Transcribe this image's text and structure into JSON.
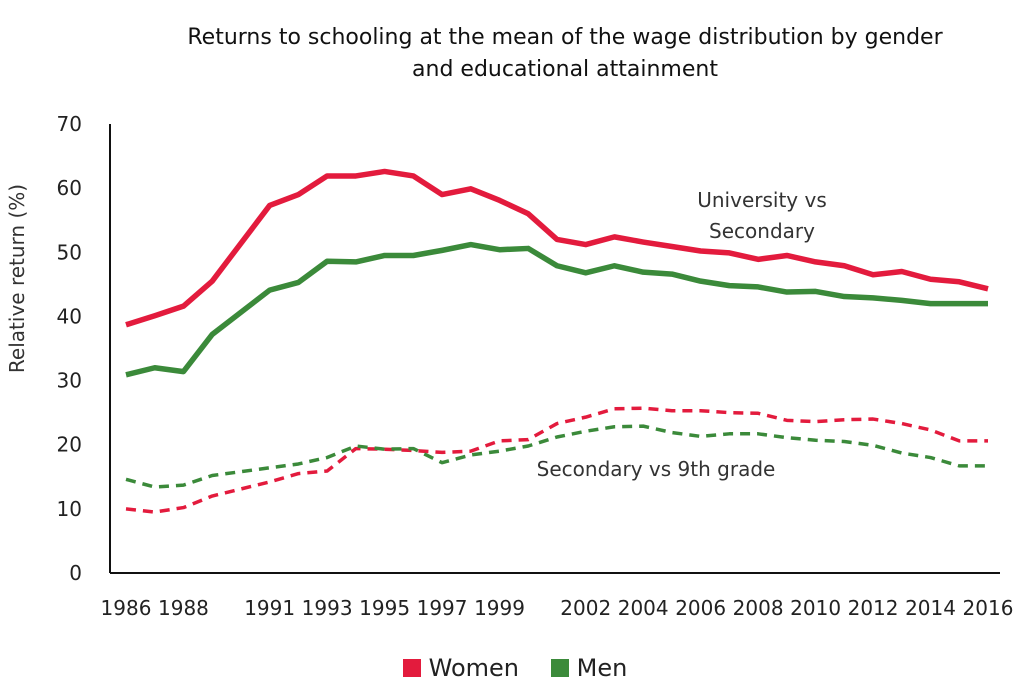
{
  "title_line1": "Returns to schooling at the mean of the wage distribution by gender",
  "title_line2": "and educational attainment",
  "chart_data": {
    "type": "line",
    "ylabel": "Relative return (%)",
    "ylim": [
      0,
      70
    ],
    "yticks": [
      0,
      10,
      20,
      30,
      40,
      50,
      60,
      70
    ],
    "x": [
      1986,
      1987,
      1988,
      1989,
      1991,
      1992,
      1993,
      1994,
      1995,
      1996,
      1997,
      1998,
      1999,
      2000,
      2001,
      2002,
      2003,
      2004,
      2005,
      2006,
      2007,
      2008,
      2009,
      2010,
      2011,
      2012,
      2013,
      2014,
      2015,
      2016
    ],
    "xtick_labels": [
      "1986",
      "1988",
      "1991",
      "1993",
      "1995",
      "1997",
      "1999",
      "2002",
      "2004",
      "2006",
      "2008",
      "2010",
      "2012",
      "2014",
      "2016"
    ],
    "series": [
      {
        "name": "Women",
        "group": "University vs Secondary",
        "color": "#e31b3d",
        "dashed": false,
        "values": [
          38.7,
          40.1,
          41.6,
          45.5,
          57.3,
          59.0,
          61.9,
          61.9,
          62.6,
          61.9,
          59.0,
          59.9,
          58.1,
          56.0,
          52.0,
          51.2,
          52.4,
          51.6,
          50.9,
          50.2,
          49.9,
          48.9,
          49.5,
          48.5,
          47.9,
          46.5,
          47.0,
          45.8,
          45.4,
          44.3
        ]
      },
      {
        "name": "Men",
        "group": "University vs Secondary",
        "color": "#3b8a3a",
        "dashed": false,
        "values": [
          30.9,
          32.0,
          31.4,
          37.2,
          44.1,
          45.3,
          48.6,
          48.5,
          49.5,
          49.5,
          50.3,
          51.2,
          50.4,
          50.6,
          47.9,
          46.8,
          47.9,
          46.9,
          46.6,
          45.5,
          44.8,
          44.6,
          43.8,
          43.9,
          43.1,
          42.9,
          42.5,
          42.0,
          42.0,
          42.0
        ]
      },
      {
        "name": "Women",
        "group": "Secondary vs 9th grade",
        "color": "#e31b3d",
        "dashed": true,
        "values": [
          10.0,
          9.5,
          10.2,
          12.0,
          14.2,
          15.5,
          15.9,
          19.4,
          19.3,
          19.1,
          18.8,
          19.0,
          20.6,
          20.8,
          23.3,
          24.3,
          25.6,
          25.7,
          25.3,
          25.3,
          25.0,
          24.9,
          23.8,
          23.6,
          23.9,
          24.0,
          23.3,
          22.3,
          20.6,
          20.6
        ]
      },
      {
        "name": "Men",
        "group": "Secondary vs 9th grade",
        "color": "#3b8a3a",
        "dashed": true,
        "values": [
          14.6,
          13.4,
          13.7,
          15.2,
          16.4,
          17.0,
          18.0,
          19.8,
          19.3,
          19.4,
          17.2,
          18.4,
          19.0,
          19.8,
          21.2,
          22.1,
          22.8,
          22.9,
          21.9,
          21.3,
          21.7,
          21.7,
          21.1,
          20.7,
          20.5,
          19.9,
          18.7,
          18.0,
          16.7,
          16.7
        ]
      }
    ],
    "annotations": [
      {
        "line1": "University vs",
        "line2": "Secondary"
      },
      {
        "line1": "Secondary vs 9th grade"
      }
    ],
    "legend": {
      "placement": "bottom",
      "items": [
        {
          "label": "Women",
          "color": "#e31b3d"
        },
        {
          "label": "Men",
          "color": "#3b8a3a"
        }
      ]
    }
  }
}
